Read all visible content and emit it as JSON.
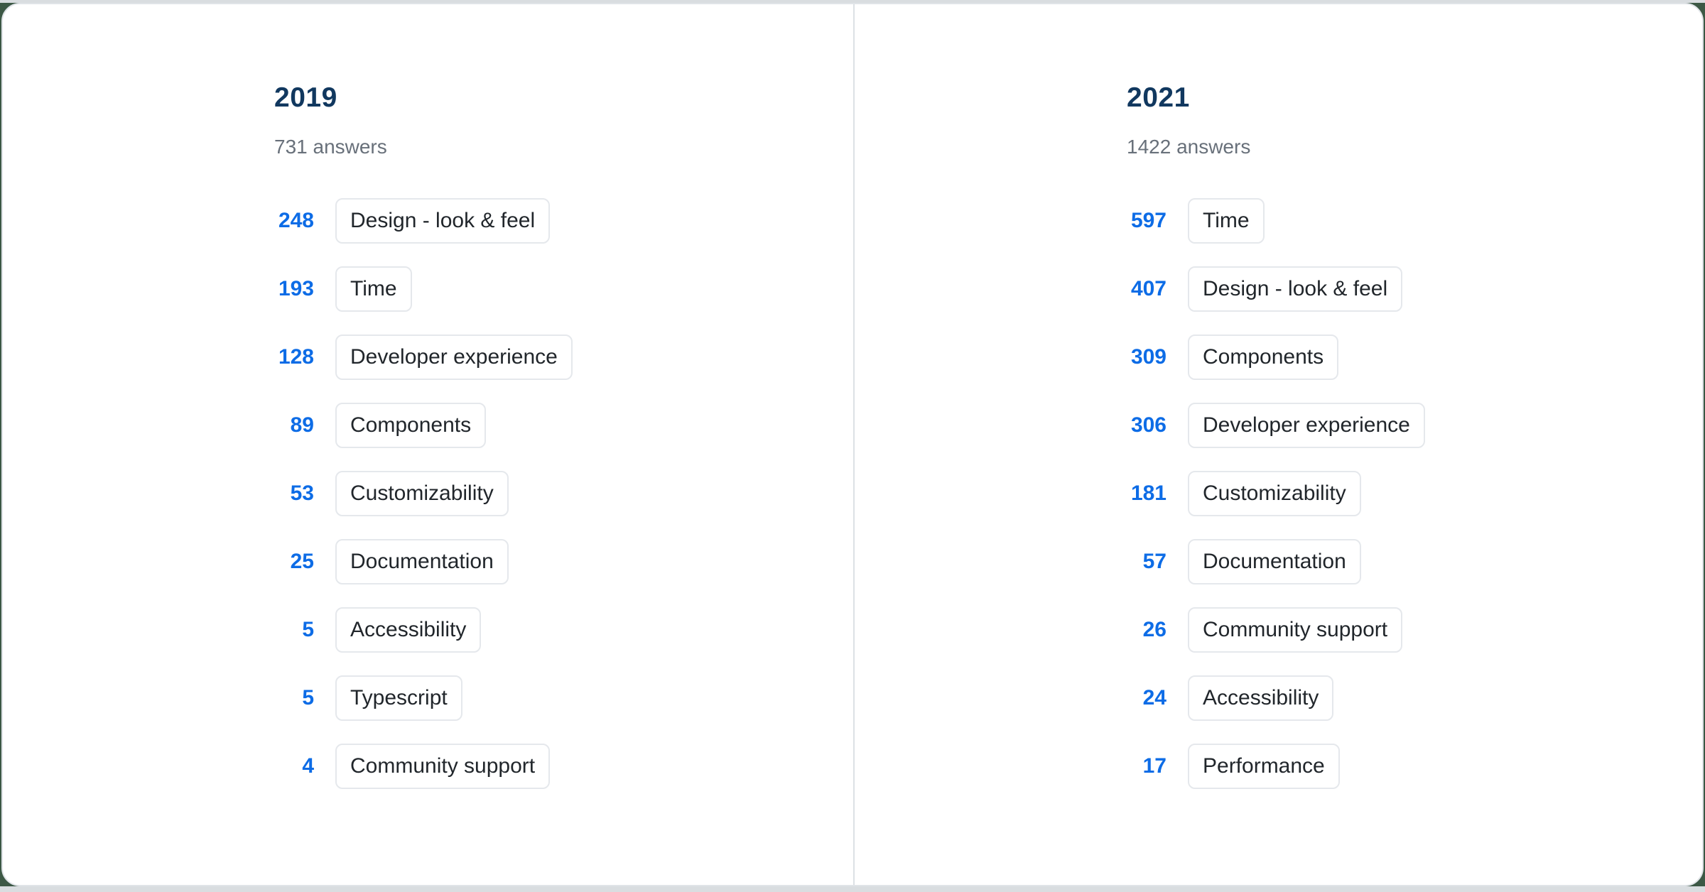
{
  "chart_data": {
    "type": "table",
    "title": "",
    "legend_position": "none",
    "columns": [
      {
        "year": "2019",
        "answers_label": "731 answers",
        "items": [
          {
            "count": 248,
            "label": "Design - look & feel"
          },
          {
            "count": 193,
            "label": "Time"
          },
          {
            "count": 128,
            "label": "Developer experience"
          },
          {
            "count": 89,
            "label": "Components"
          },
          {
            "count": 53,
            "label": "Customizability"
          },
          {
            "count": 25,
            "label": "Documentation"
          },
          {
            "count": 5,
            "label": "Accessibility"
          },
          {
            "count": 5,
            "label": "Typescript"
          },
          {
            "count": 4,
            "label": "Community support"
          }
        ]
      },
      {
        "year": "2021",
        "answers_label": "1422 answers",
        "items": [
          {
            "count": 597,
            "label": "Time"
          },
          {
            "count": 407,
            "label": "Design - look & feel"
          },
          {
            "count": 309,
            "label": "Components"
          },
          {
            "count": 306,
            "label": "Developer experience"
          },
          {
            "count": 181,
            "label": "Customizability"
          },
          {
            "count": 57,
            "label": "Documentation"
          },
          {
            "count": 26,
            "label": "Community support"
          },
          {
            "count": 24,
            "label": "Accessibility"
          },
          {
            "count": 17,
            "label": "Performance"
          }
        ]
      }
    ]
  },
  "colors": {
    "year_heading": "#11385f",
    "count_blue": "#0d6ce6",
    "label_text": "#21262b",
    "muted_text": "#68707a",
    "chip_border": "#e5e8ec",
    "divider": "#dde1e5",
    "page_background": "#d9dde0",
    "backdrop_green": "#3c5845",
    "card_background": "#ffffff",
    "card_border": "#e0e4e8"
  }
}
